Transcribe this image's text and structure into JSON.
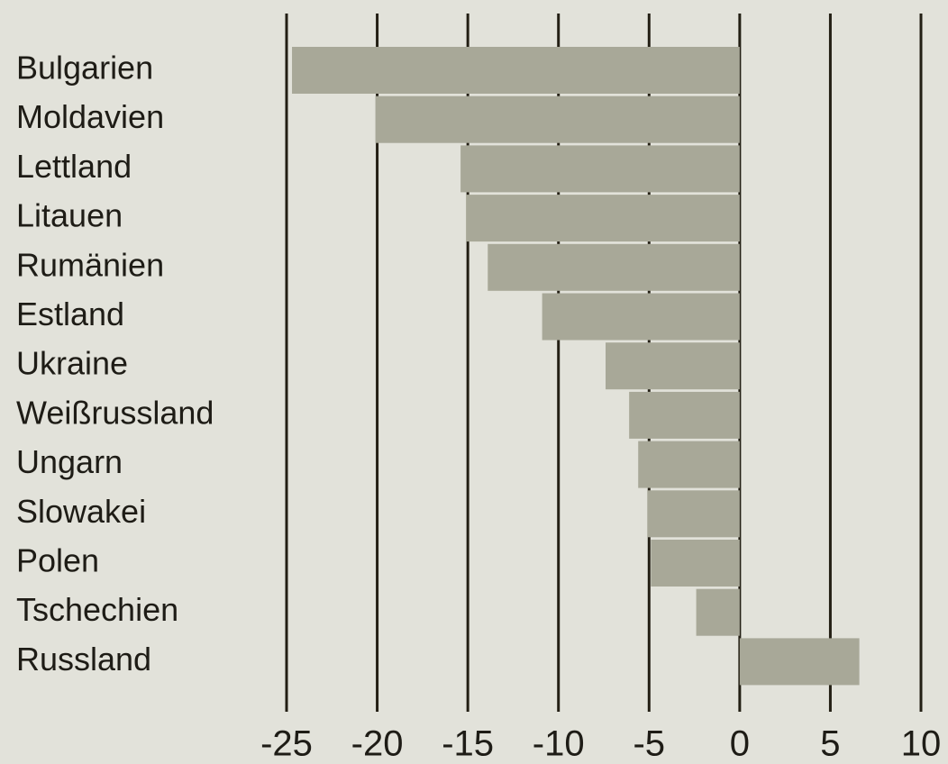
{
  "chart_data": {
    "type": "barh",
    "categories": [
      "Bulgarien",
      "Moldavien",
      "Lettland",
      "Litauen",
      "Rumänien",
      "Estland",
      "Ukraine",
      "Weißrussland",
      "Ungarn",
      "Slowakei",
      "Polen",
      "Tschechien",
      "Russland"
    ],
    "values": [
      -24.7,
      -20.1,
      -15.4,
      -15.1,
      -13.9,
      -10.9,
      -7.4,
      -6.1,
      -5.6,
      -5.1,
      -4.9,
      -2.4,
      6.6
    ],
    "color": "#a8a898",
    "xlim": [
      -25,
      10
    ],
    "xticks": [
      -25,
      -20,
      -15,
      -10,
      -5,
      0,
      5,
      10
    ],
    "grid": true
  }
}
